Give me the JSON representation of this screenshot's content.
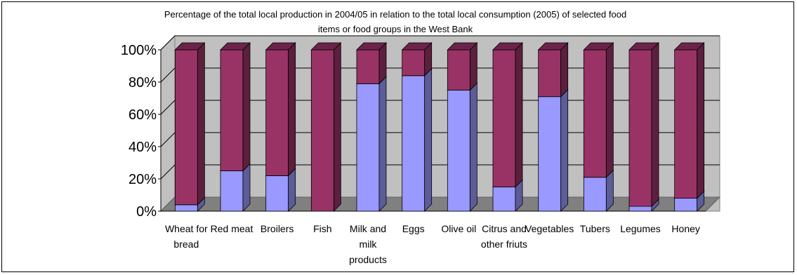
{
  "chart_data": {
    "type": "bar",
    "stacked": true,
    "percent_stacked": true,
    "title_lines": [
      "Percentage of the total local production in 2004/05 in relation to the total local consumption (2005) of selected food",
      "items or food groups in the West Bank"
    ],
    "xlabel": "",
    "ylabel": "",
    "ylim": [
      0,
      100
    ],
    "y_ticks": [
      "0%",
      "20%",
      "40%",
      "60%",
      "80%",
      "100%"
    ],
    "grid": true,
    "legend": "none",
    "categories": [
      [
        "Wheat for",
        "bread"
      ],
      [
        "Red meat"
      ],
      [
        "Broilers"
      ],
      [
        "Fish"
      ],
      [
        "Milk and",
        "milk",
        "products"
      ],
      [
        "Eggs"
      ],
      [
        "Olive oil"
      ],
      [
        "Citrus and",
        "other friuts"
      ],
      [
        "Vegetables"
      ],
      [
        "Tubers"
      ],
      [
        "Legumes"
      ],
      [
        "Honey"
      ]
    ],
    "series": [
      {
        "values": [
          4,
          25,
          22,
          0,
          79,
          84,
          75,
          15,
          71,
          21,
          3,
          8
        ]
      },
      {
        "values": [
          96,
          75,
          78,
          100,
          21,
          16,
          25,
          85,
          29,
          79,
          97,
          92
        ]
      }
    ],
    "colors": {
      "series0_front": "#9999ff",
      "series0_side": "#5c5c99",
      "series0_top": "#ccccff",
      "series1_front": "#993366",
      "series1_side": "#5c1f3d",
      "series1_top": "#6b2447",
      "wall": "#c0c0c0",
      "floor": "#808080",
      "gridline": "#000000"
    }
  }
}
